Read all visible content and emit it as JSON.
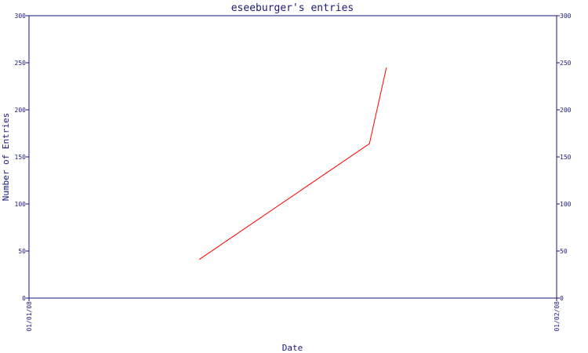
{
  "chart_data": {
    "type": "line",
    "title": "eseeburger's entries",
    "xlabel": "Date",
    "ylabel": "Number of Entries",
    "x_tick_labels": [
      "01/01/08",
      "01/02/08"
    ],
    "y_ticks": [
      0,
      50,
      100,
      150,
      200,
      250,
      300
    ],
    "ylim": [
      0,
      300
    ],
    "grid": false,
    "legend": "none",
    "series": [
      {
        "color": "#ff0000",
        "x": [
          "2008-01-11",
          "2008-01-21",
          "2008-01-22"
        ],
        "y": [
          41,
          164,
          245
        ]
      }
    ],
    "colors": {
      "axis": "#1a1a7a",
      "line": "#ff0000",
      "background": "#ffffff"
    }
  }
}
